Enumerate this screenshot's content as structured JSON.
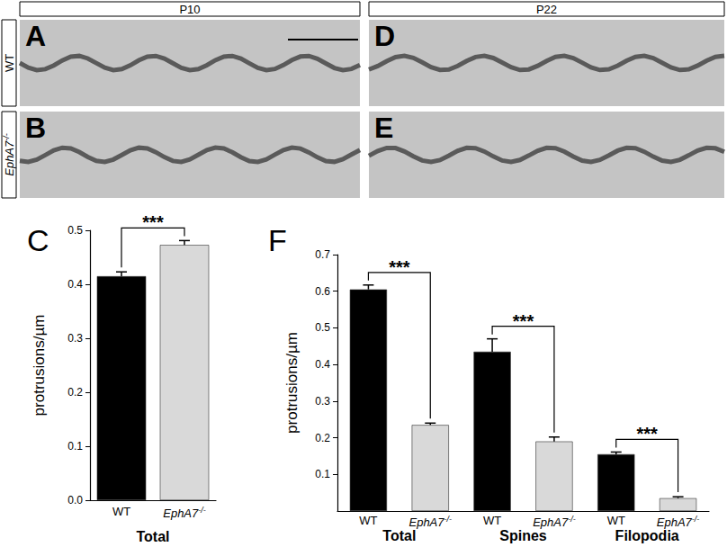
{
  "figure": {
    "columns": [
      "P10",
      "P22"
    ],
    "rows": [
      "WT",
      "EphA7-/-"
    ],
    "panels": [
      "A",
      "B",
      "D",
      "E"
    ]
  },
  "chart_data": [
    {
      "panel": "C",
      "type": "bar",
      "categories": [
        "WT",
        "EphA7-/-"
      ],
      "values": [
        0.415,
        0.473
      ],
      "errors": [
        0.008,
        0.008
      ],
      "colors": [
        "#000000",
        "#d9d9d9"
      ],
      "xlabel": "Total",
      "ylabel": "protrusions/µm",
      "ylim": [
        0,
        0.5
      ],
      "yticks": [
        {
          "value": 0,
          "label": "0.0"
        },
        0.1,
        0.2,
        0.3,
        0.4,
        0.5
      ],
      "significance": [
        "***"
      ],
      "grid": false
    },
    {
      "panel": "F",
      "type": "bar",
      "categories": [
        "Total",
        "Spines",
        "Filopodia"
      ],
      "series": [
        {
          "name": "WT",
          "color": "#000000",
          "values": [
            0.605,
            0.435,
            0.155
          ],
          "errors": [
            0.012,
            0.035,
            0.006
          ]
        },
        {
          "name": "EphA7-/-",
          "color": "#d9d9d9",
          "values": [
            0.235,
            0.19,
            0.035
          ],
          "errors": [
            0.005,
            0.012,
            0.004
          ]
        }
      ],
      "ylabel": "protrusions/µm",
      "ylim": [
        0,
        0.7
      ],
      "yticks": [
        0.1,
        0.2,
        0.3,
        0.4,
        0.5,
        0.6,
        0.7
      ],
      "significance": [
        "***",
        "***",
        "***"
      ],
      "grid": false
    }
  ]
}
